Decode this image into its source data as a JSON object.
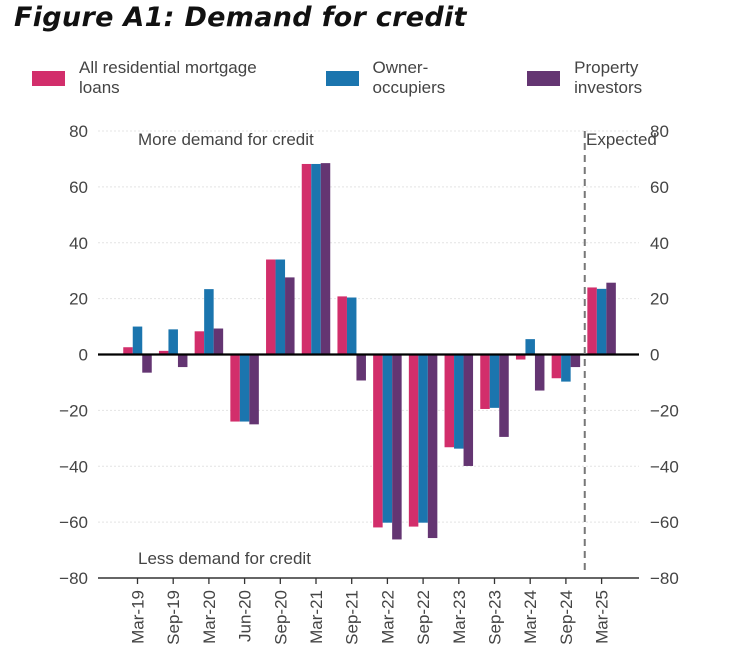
{
  "title": "Figure A1: Demand for credit",
  "colors": {
    "all": "#D22E6B",
    "owner": "#1B75AE",
    "investor": "#643572"
  },
  "chart_data": {
    "type": "bar",
    "title": "Figure A1: Demand for credit",
    "xlabel": "",
    "ylabel": "",
    "ylim": [
      -80,
      80
    ],
    "yticks": [
      80,
      60,
      40,
      20,
      0,
      -20,
      -40,
      -60,
      -80
    ],
    "ytick_labels": [
      "80",
      "60",
      "40",
      "20",
      "0",
      "−20",
      "−40",
      "−60",
      "−80"
    ],
    "grid": true,
    "legend_position": "top",
    "categories": [
      "Mar-19",
      "Sep-19",
      "Mar-20",
      "Jun-20",
      "Sep-20",
      "Mar-21",
      "Sep-21",
      "Mar-22",
      "Sep-22",
      "Mar-23",
      "Sep-23",
      "Mar-24",
      "Sep-24",
      "Mar-25"
    ],
    "series": [
      {
        "name": "All residential mortgage loans",
        "key": "all",
        "values": [
          2.6,
          1.3,
          8.3,
          -24,
          34,
          68.2,
          20.8,
          -61.9,
          -61.6,
          -33.2,
          -19.5,
          -1.8,
          -8.5,
          24
        ]
      },
      {
        "name": "Owner-occupiers",
        "key": "owner",
        "values": [
          10,
          9,
          23.4,
          -24,
          34,
          68.2,
          20.4,
          -60.2,
          -60.2,
          -33.7,
          -19.1,
          5.5,
          -9.7,
          23.5
        ]
      },
      {
        "name": "Property investors",
        "key": "investor",
        "values": [
          -6.5,
          -4.5,
          9.3,
          -25,
          27.6,
          68.5,
          -9.3,
          -66.2,
          -65.7,
          -39.9,
          -29.5,
          -12.9,
          -4.5,
          25.7
        ]
      }
    ],
    "annotations": {
      "top": "More demand for credit",
      "bottom": "Less demand for credit",
      "expected": "Expected"
    },
    "expected_divider_after": "Sep-24"
  }
}
